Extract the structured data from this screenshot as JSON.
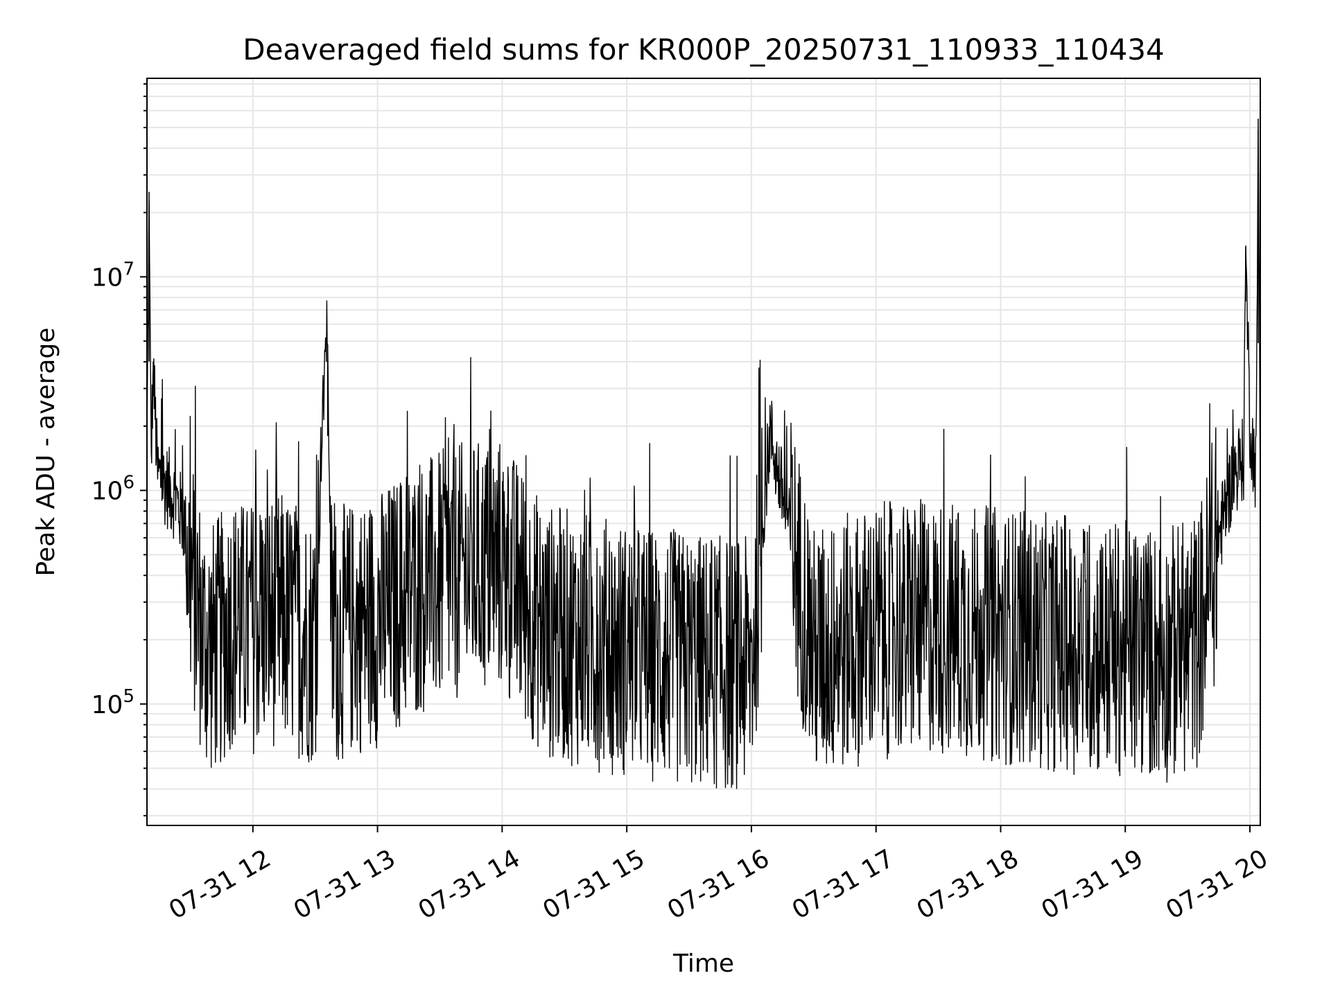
{
  "chart_data": {
    "type": "line",
    "title": "Deaveraged field sums for KR000P_20250731_110933_110434",
    "xlabel": "Time",
    "ylabel": "Peak ADU - average",
    "y_scale": "log",
    "ylim": [
      27000,
      85000000
    ],
    "xlim": [
      "2025-07-31 11:09",
      "2025-07-31 20:05"
    ],
    "grid": true,
    "line_color": "#000000",
    "grid_color": "#e6e6e6",
    "x_ticks": [
      {
        "value": "2025-07-31 12:00",
        "label": "07-31 12"
      },
      {
        "value": "2025-07-31 13:00",
        "label": "07-31 13"
      },
      {
        "value": "2025-07-31 14:00",
        "label": "07-31 14"
      },
      {
        "value": "2025-07-31 15:00",
        "label": "07-31 15"
      },
      {
        "value": "2025-07-31 16:00",
        "label": "07-31 16"
      },
      {
        "value": "2025-07-31 17:00",
        "label": "07-31 17"
      },
      {
        "value": "2025-07-31 18:00",
        "label": "07-31 18"
      },
      {
        "value": "2025-07-31 19:00",
        "label": "07-31 19"
      },
      {
        "value": "2025-07-31 20:00",
        "label": "07-31 20"
      }
    ],
    "y_ticks": [
      {
        "value": 100000,
        "base": "10",
        "exp": "5"
      },
      {
        "value": 1000000,
        "base": "10",
        "exp": "6"
      },
      {
        "value": 10000000,
        "base": "10",
        "exp": "7"
      }
    ],
    "series": [
      {
        "type": "line",
        "x": [
          "2025-07-31 11:09",
          "2025-07-31 11:10",
          "2025-07-31 11:11",
          "2025-07-31 11:12",
          "2025-07-31 11:14",
          "2025-07-31 11:17",
          "2025-07-31 11:20",
          "2025-07-31 11:23",
          "2025-07-31 11:27",
          "2025-07-31 11:30",
          "2025-07-31 11:33",
          "2025-07-31 11:36",
          "2025-07-31 11:40",
          "2025-07-31 11:45",
          "2025-07-31 11:50",
          "2025-07-31 11:57",
          "2025-07-31 12:05",
          "2025-07-31 12:13",
          "2025-07-31 12:20",
          "2025-07-31 12:30",
          "2025-07-31 12:35",
          "2025-07-31 12:36",
          "2025-07-31 12:38",
          "2025-07-31 12:45",
          "2025-07-31 13:00",
          "2025-07-31 13:20",
          "2025-07-31 13:40",
          "2025-07-31 14:00",
          "2025-07-31 14:20",
          "2025-07-31 14:40",
          "2025-07-31 15:00",
          "2025-07-31 15:30",
          "2025-07-31 16:00",
          "2025-07-31 16:09",
          "2025-07-31 16:30",
          "2025-07-31 17:00",
          "2025-07-31 17:30",
          "2025-07-31 18:00",
          "2025-07-31 18:30",
          "2025-07-31 19:00",
          "2025-07-31 19:20",
          "2025-07-31 19:35",
          "2025-07-31 19:45",
          "2025-07-31 19:52",
          "2025-07-31 19:57",
          "2025-07-31 19:58",
          "2025-07-31 20:00",
          "2025-07-31 20:03",
          "2025-07-31 20:04",
          "2025-07-31 20:05"
        ],
        "y": [
          1500000,
          25000000,
          1300000,
          4000000,
          1200000,
          1100000,
          1000000,
          900000,
          700000,
          400000,
          300000,
          200000,
          180000,
          200000,
          250000,
          220000,
          250000,
          250000,
          230000,
          200000,
          5200000,
          4800000,
          200000,
          220000,
          250000,
          350000,
          420000,
          450000,
          220000,
          200000,
          180000,
          160000,
          150000,
          1900000,
          170000,
          220000,
          230000,
          210000,
          190000,
          180000,
          170000,
          200000,
          600000,
          1200000,
          1400000,
          14000000,
          2000000,
          1200000,
          55000000,
          1100000
        ]
      }
    ],
    "noise": {
      "description_hidden": true,
      "min_value": 40000
    }
  }
}
